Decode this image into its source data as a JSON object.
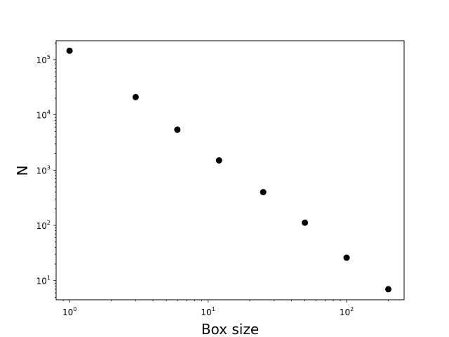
{
  "chart_data": {
    "type": "scatter",
    "title": "",
    "xlabel": "Box size",
    "ylabel": "N",
    "xscale": "log",
    "yscale": "log",
    "xlim": [
      0.8,
      260
    ],
    "ylim": [
      4.5,
      220000
    ],
    "grid": false,
    "x_ticks": [
      {
        "base": "10",
        "exp": "0",
        "value": 1
      },
      {
        "base": "10",
        "exp": "1",
        "value": 10
      },
      {
        "base": "10",
        "exp": "2",
        "value": 100
      }
    ],
    "y_ticks": [
      {
        "base": "10",
        "exp": "1",
        "value": 10
      },
      {
        "base": "10",
        "exp": "2",
        "value": 100
      },
      {
        "base": "10",
        "exp": "3",
        "value": 1000
      },
      {
        "base": "10",
        "exp": "4",
        "value": 10000
      },
      {
        "base": "10",
        "exp": "5",
        "value": 100000
      }
    ],
    "points": [
      {
        "x": 1,
        "y": 145000
      },
      {
        "x": 3,
        "y": 21000
      },
      {
        "x": 6,
        "y": 5400
      },
      {
        "x": 12,
        "y": 1500
      },
      {
        "x": 25,
        "y": 400
      },
      {
        "x": 50,
        "y": 112
      },
      {
        "x": 100,
        "y": 26
      },
      {
        "x": 200,
        "y": 7
      }
    ],
    "point_color": "#000000"
  }
}
